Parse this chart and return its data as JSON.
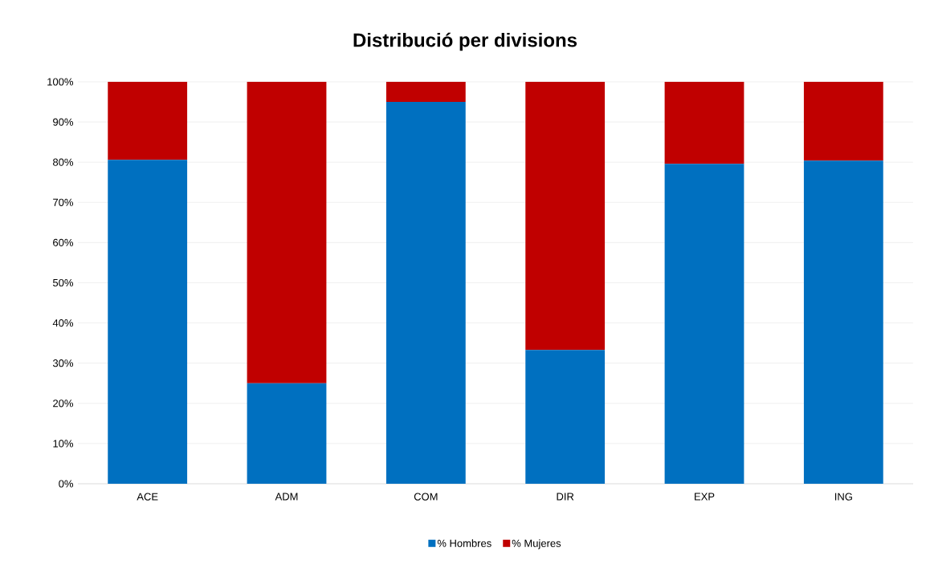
{
  "chart_data": {
    "type": "bar",
    "title": "Distribució per divisions",
    "stacked": true,
    "categories": [
      "ACE",
      "ADM",
      "COM",
      "DIR",
      "EXP",
      "ING"
    ],
    "series": [
      {
        "name": "% Hombres",
        "color": "#0070c0",
        "values": [
          80.6,
          25.0,
          95.0,
          33.3,
          79.6,
          80.4
        ]
      },
      {
        "name": "% Mujeres",
        "color": "#c00000",
        "values": [
          19.4,
          75.0,
          5.0,
          66.7,
          20.4,
          19.6
        ]
      }
    ],
    "ylim": [
      0,
      100
    ],
    "yticks": [
      {
        "value": 0,
        "label": "0%"
      },
      {
        "value": 10,
        "label": "10%"
      },
      {
        "value": 20,
        "label": "20%"
      },
      {
        "value": 30,
        "label": "30%"
      },
      {
        "value": 40,
        "label": "40%"
      },
      {
        "value": 50,
        "label": "50%"
      },
      {
        "value": 60,
        "label": "60%"
      },
      {
        "value": 70,
        "label": "70%"
      },
      {
        "value": 80,
        "label": "80%"
      },
      {
        "value": 90,
        "label": "90%"
      },
      {
        "value": 100,
        "label": "100%"
      }
    ],
    "grid": "y",
    "legend": "bottom"
  }
}
